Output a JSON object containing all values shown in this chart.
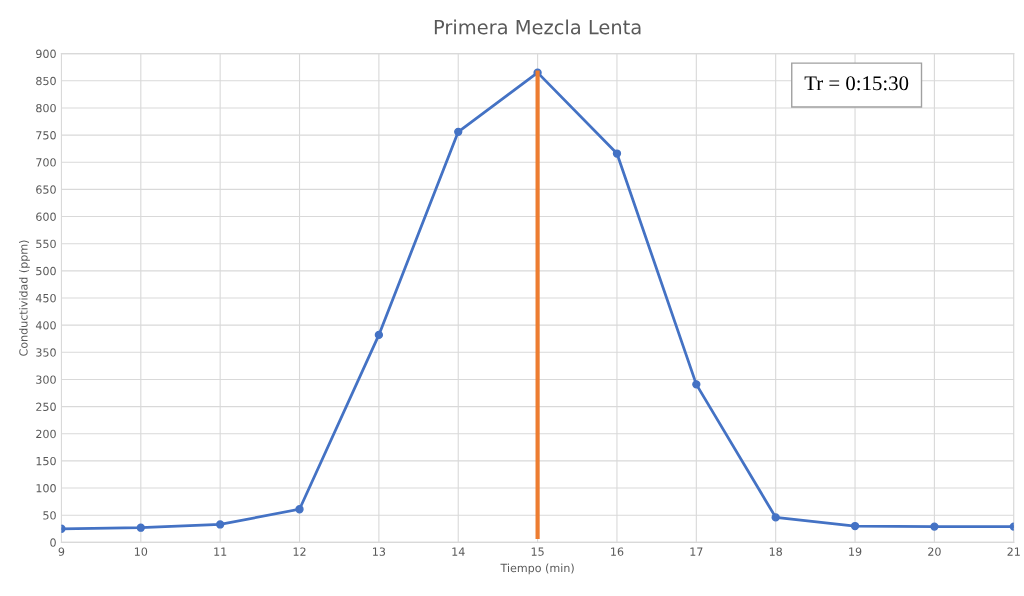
{
  "chart_data": {
    "type": "line",
    "title": "Primera Mezcla Lenta",
    "xlabel": "Tiempo (min)",
    "ylabel": "Conductividad (ppm)",
    "x": [
      9,
      10,
      11,
      12,
      13,
      14,
      15,
      16,
      17,
      18,
      19,
      20,
      21
    ],
    "series": [
      {
        "color": "#4472c4",
        "values": [
          25,
          27,
          33,
          61,
          382,
          756,
          865,
          716,
          291,
          46,
          30,
          29,
          29
        ]
      },
      {
        "color": "#ed7d31",
        "x": [
          15,
          15
        ],
        "values": [
          10,
          865
        ],
        "marker": "none"
      }
    ],
    "xlim": [
      9,
      21
    ],
    "xticks": [
      9,
      10,
      11,
      12,
      13,
      14,
      15,
      16,
      17,
      18,
      19,
      20,
      21
    ],
    "ylim": [
      0,
      900
    ],
    "yticks": [
      0,
      50,
      100,
      150,
      200,
      250,
      300,
      350,
      400,
      450,
      500,
      550,
      600,
      650,
      700,
      750,
      800,
      850,
      900
    ],
    "grid": true,
    "marker": "circle",
    "line_style": "solid",
    "annotations": [
      "Tr = 0:15:30"
    ]
  }
}
